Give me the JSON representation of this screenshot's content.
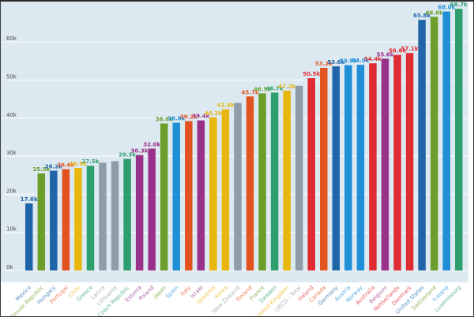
{
  "chart_data": {
    "type": "bar",
    "title": "",
    "xlabel": "",
    "ylabel": "",
    "ylim": [
      0,
      70000
    ],
    "grid": true,
    "yticks": [
      {
        "value": 0,
        "label": "0k"
      },
      {
        "value": 10000,
        "label": "10k"
      },
      {
        "value": 20000,
        "label": "20k"
      },
      {
        "value": 30000,
        "label": "30k"
      },
      {
        "value": 40000,
        "label": "40k"
      },
      {
        "value": 50000,
        "label": "50k"
      },
      {
        "value": 60000,
        "label": "60k"
      }
    ],
    "bars": [
      {
        "category": "Mexico",
        "value": 17600,
        "label": "17.6k",
        "color": "#1f65a8"
      },
      {
        "category": "Slovak Republic",
        "value": 25500,
        "label": "25.5k",
        "color": "#6b9e2a"
      },
      {
        "category": "Hungary",
        "value": 26200,
        "label": "26.2k",
        "color": "#1f65a8"
      },
      {
        "category": "Portugal",
        "value": 26600,
        "label": "26.6k",
        "color": "#e3531f"
      },
      {
        "category": "Chile",
        "value": 26900,
        "label": "26.9k",
        "color": "#e8b60c"
      },
      {
        "category": "Greece",
        "value": 27500,
        "label": "27.5k",
        "color": "#2f9e6e"
      },
      {
        "category": "Latvia",
        "value": 28300,
        "label": "",
        "color": "#8e9ea9"
      },
      {
        "category": "Lithuania",
        "value": 28700,
        "label": "",
        "color": "#8e9ea9"
      },
      {
        "category": "Czech Republic",
        "value": 29300,
        "label": "29.3k",
        "color": "#2f9e6e"
      },
      {
        "category": "Estonia",
        "value": 30300,
        "label": "30.3k",
        "color": "#993089"
      },
      {
        "category": "Poland",
        "value": 32000,
        "label": "32.0k",
        "color": "#993089"
      },
      {
        "category": "Japan",
        "value": 38600,
        "label": "38.6k",
        "color": "#6b9e2a"
      },
      {
        "category": "Spain",
        "value": 38800,
        "label": "38.8k",
        "color": "#1f8fd8"
      },
      {
        "category": "Italy",
        "value": 39200,
        "label": "39.2k",
        "color": "#e3531f"
      },
      {
        "category": "Israel",
        "value": 39400,
        "label": "39.4k",
        "color": "#993089"
      },
      {
        "category": "Slovenia",
        "value": 40200,
        "label": "40.2k",
        "color": "#e8b60c"
      },
      {
        "category": "Korea",
        "value": 42300,
        "label": "42.3k",
        "color": "#e8b60c"
      },
      {
        "category": "New Zealand",
        "value": 44000,
        "label": "",
        "color": "#8e9ea9"
      },
      {
        "category": "Finland",
        "value": 45700,
        "label": "45.7k",
        "color": "#e3531f"
      },
      {
        "category": "France",
        "value": 46500,
        "label": "46.5k",
        "color": "#6b9e2a"
      },
      {
        "category": "Sweden",
        "value": 46700,
        "label": "46.7k",
        "color": "#2f9e6e"
      },
      {
        "category": "United Kingdom",
        "value": 47200,
        "label": "47.2k",
        "color": "#e8b60c"
      },
      {
        "category": "OECD - Total",
        "value": 48500,
        "label": "",
        "color": "#8e9ea9"
      },
      {
        "category": "Ireland",
        "value": 50500,
        "label": "50.5k",
        "color": "#e02b32"
      },
      {
        "category": "Canada",
        "value": 53200,
        "label": "53.2k",
        "color": "#e3531f"
      },
      {
        "category": "Germany",
        "value": 53600,
        "label": "53.6k",
        "color": "#1f65a8"
      },
      {
        "category": "Austria",
        "value": 53900,
        "label": "53.9k",
        "color": "#1f8fd8"
      },
      {
        "category": "Norway",
        "value": 54000,
        "label": "54.0k",
        "color": "#1f8fd8"
      },
      {
        "category": "Australia",
        "value": 54400,
        "label": "54.4k",
        "color": "#e02b32"
      },
      {
        "category": "Belgium",
        "value": 55600,
        "label": "55.6k",
        "color": "#993089"
      },
      {
        "category": "Netherlands",
        "value": 56600,
        "label": "56.6k",
        "color": "#e02b32"
      },
      {
        "category": "Denmark",
        "value": 57100,
        "label": "57.1k",
        "color": "#e02b32"
      },
      {
        "category": "United States",
        "value": 65800,
        "label": "65.8k",
        "color": "#1f65a8"
      },
      {
        "category": "Switzerland",
        "value": 66600,
        "label": "66.6k",
        "color": "#6b9e2a"
      },
      {
        "category": "Iceland",
        "value": 68000,
        "label": "68.0k",
        "color": "#1f8fd8"
      },
      {
        "category": "Luxembourg",
        "value": 68700,
        "label": "68.7k",
        "color": "#2f9e6e"
      }
    ]
  },
  "colors": {
    "plot_background": "#dde9f1",
    "gridline": "#f2f6f9"
  }
}
